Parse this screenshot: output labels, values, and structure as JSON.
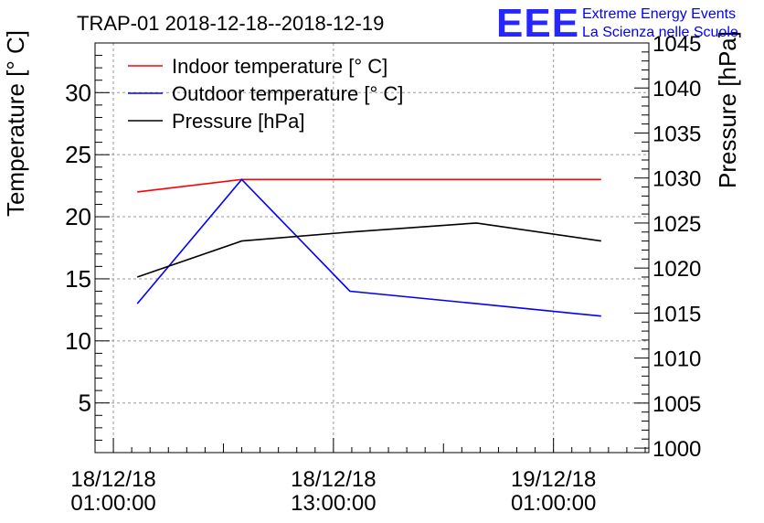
{
  "chart_data": {
    "type": "line",
    "title": "TRAP-01 2018-12-18--2018-12-19",
    "ylabel_left": "Temperature [° C]",
    "ylabel_right": "Pressure [hPa]",
    "xlabel": "",
    "x_ticks": [
      {
        "t": 1,
        "line1": "18/12/18",
        "line2": "01:00:00"
      },
      {
        "t": 13,
        "line1": "18/12/18",
        "line2": "13:00:00"
      },
      {
        "t": 25,
        "line1": "19/12/18",
        "line2": "01:00:00"
      }
    ],
    "xlim": [
      0,
      30.2
    ],
    "ylim_left": [
      1,
      34
    ],
    "ylim_right": [
      999.5,
      1045
    ],
    "yticks_left": [
      5,
      10,
      15,
      20,
      25,
      30
    ],
    "yticks_right": [
      1000,
      1005,
      1010,
      1015,
      1020,
      1025,
      1030,
      1035,
      1040,
      1045
    ],
    "grid": true,
    "legend_position": "top-left",
    "series": [
      {
        "name": "Indoor temperature [° C]",
        "axis": "left",
        "color": "#ff0000",
        "x": [
          2.3,
          8.0,
          13.9,
          20.8,
          27.6
        ],
        "y": [
          22,
          23,
          23,
          23,
          23
        ]
      },
      {
        "name": "Outdoor temperature [° C]",
        "axis": "left",
        "color": "#0000ff",
        "x": [
          2.3,
          8.0,
          13.9,
          20.8,
          27.6
        ],
        "y": [
          13,
          23,
          14,
          13,
          12
        ]
      },
      {
        "name": "Pressure [hPa]",
        "axis": "right",
        "color": "#000000",
        "x": [
          2.3,
          8.0,
          13.9,
          20.8,
          27.6
        ],
        "y": [
          1019,
          1023,
          1024,
          1025,
          1023
        ]
      }
    ]
  },
  "logo": {
    "mark": "EEE",
    "line1": "Extreme Energy Events",
    "line2": "La Scienza nelle Scuole",
    "color": "#0000ff"
  }
}
